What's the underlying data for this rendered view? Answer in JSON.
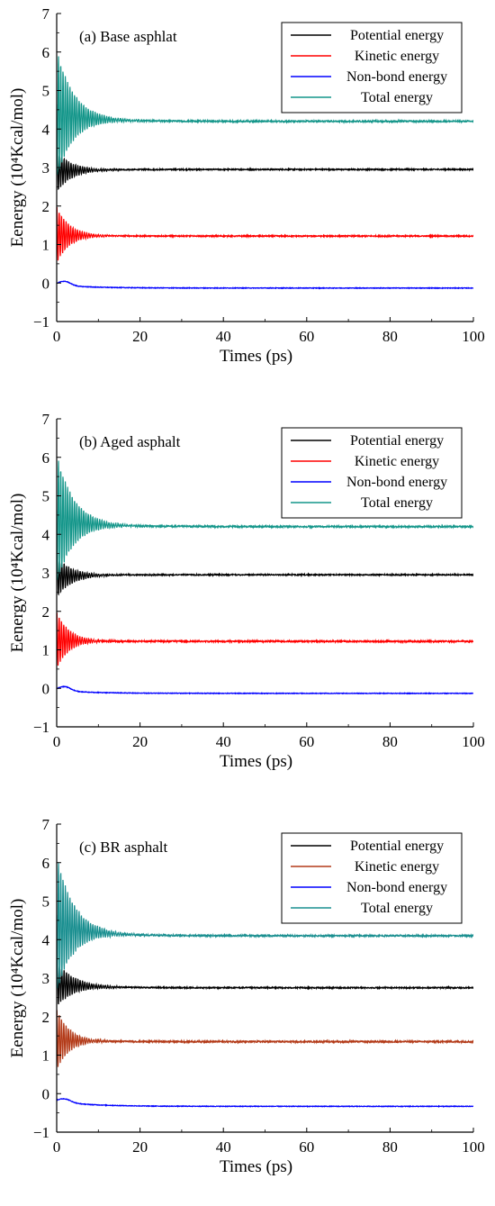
{
  "chart_data": [
    {
      "type": "line",
      "panel_label": "(a) Base asphlat",
      "xlabel": "Times (ps)",
      "ylabel": "Eenergy (10⁴Kcal/mol)",
      "xlim": [
        0,
        100
      ],
      "ylim": [
        -1,
        7
      ],
      "xticks": [
        0,
        20,
        40,
        60,
        80,
        100
      ],
      "yticks": [
        -1,
        0,
        1,
        2,
        3,
        4,
        5,
        6,
        7
      ],
      "legend_position": "top-right",
      "series": [
        {
          "name": "Potential energy",
          "color": "#000000",
          "start": 2.9,
          "final": 2.95,
          "amp0": 0.55,
          "tau": 3.5,
          "noise": 0.015,
          "x": [
            0,
            5,
            10,
            20,
            40,
            60,
            80,
            100
          ],
          "y": [
            2.9,
            3.1,
            3.0,
            2.97,
            2.96,
            2.95,
            2.95,
            2.95
          ]
        },
        {
          "name": "Kinetic energy",
          "color": "#ff0000",
          "start": 1.25,
          "final": 1.22,
          "amp0": 0.75,
          "tau": 3.0,
          "noise": 0.015,
          "x": [
            0,
            5,
            10,
            20,
            40,
            60,
            80,
            100
          ],
          "y": [
            1.25,
            1.3,
            1.24,
            1.22,
            1.22,
            1.22,
            1.22,
            1.22
          ]
        },
        {
          "name": "Non-bond energy",
          "color": "#0000ff",
          "start": -0.05,
          "final": -0.13,
          "amp0": 0.0,
          "tau": 3.0,
          "noise": 0.008,
          "bump": 0.12,
          "x": [
            0,
            2,
            5,
            10,
            20,
            40,
            60,
            80,
            100
          ],
          "y": [
            -0.05,
            0.08,
            0.05,
            -0.02,
            -0.08,
            -0.1,
            -0.11,
            -0.12,
            -0.13
          ]
        },
        {
          "name": "Total energy",
          "color": "#14968a",
          "start": 4.4,
          "final": 4.2,
          "amp0": 1.7,
          "tau": 4.0,
          "noise": 0.02,
          "x": [
            0,
            5,
            10,
            20,
            40,
            60,
            80,
            100
          ],
          "y": [
            4.4,
            4.3,
            4.25,
            4.22,
            4.21,
            4.2,
            4.2,
            4.2
          ]
        }
      ]
    },
    {
      "type": "line",
      "panel_label": "(b) Aged asphalt",
      "xlabel": "Times (ps)",
      "ylabel": "Eenergy (10⁴Kcal/mol)",
      "xlim": [
        0,
        100
      ],
      "ylim": [
        -1,
        7
      ],
      "xticks": [
        0,
        20,
        40,
        60,
        80,
        100
      ],
      "yticks": [
        -1,
        0,
        1,
        2,
        3,
        4,
        5,
        6,
        7
      ],
      "legend_position": "top-right",
      "series": [
        {
          "name": "Potential energy",
          "color": "#000000",
          "start": 2.9,
          "final": 2.95,
          "amp0": 0.55,
          "tau": 3.5,
          "noise": 0.015,
          "x": [
            0,
            5,
            10,
            20,
            40,
            60,
            80,
            100
          ],
          "y": [
            2.9,
            3.1,
            3.0,
            2.97,
            2.96,
            2.95,
            2.95,
            2.95
          ]
        },
        {
          "name": "Kinetic energy",
          "color": "#ff0000",
          "start": 1.25,
          "final": 1.22,
          "amp0": 0.75,
          "tau": 3.0,
          "noise": 0.02,
          "x": [
            0,
            5,
            10,
            20,
            40,
            60,
            80,
            100
          ],
          "y": [
            1.25,
            1.3,
            1.24,
            1.22,
            1.22,
            1.22,
            1.22,
            1.22
          ]
        },
        {
          "name": "Non-bond energy",
          "color": "#0000ff",
          "start": -0.05,
          "final": -0.13,
          "amp0": 0.0,
          "tau": 3.0,
          "noise": 0.008,
          "bump": 0.12,
          "x": [
            0,
            2,
            5,
            10,
            20,
            40,
            60,
            80,
            100
          ],
          "y": [
            -0.05,
            0.08,
            0.05,
            -0.02,
            -0.08,
            -0.1,
            -0.11,
            -0.12,
            -0.13
          ]
        },
        {
          "name": "Total energy",
          "color": "#14968a",
          "start": 4.4,
          "final": 4.2,
          "amp0": 1.7,
          "tau": 4.0,
          "noise": 0.02,
          "x": [
            0,
            5,
            10,
            20,
            40,
            60,
            80,
            100
          ],
          "y": [
            4.4,
            4.3,
            4.25,
            4.22,
            4.21,
            4.2,
            4.2,
            4.2
          ]
        }
      ]
    },
    {
      "type": "line",
      "panel_label": "(c) BR asphalt",
      "xlabel": "Times (ps)",
      "ylabel": "Eenergy (10⁴Kcal/mol)",
      "xlim": [
        0,
        100
      ],
      "ylim": [
        -1,
        7
      ],
      "xticks": [
        0,
        20,
        40,
        60,
        80,
        100
      ],
      "yticks": [
        -1,
        0,
        1,
        2,
        3,
        4,
        5,
        6,
        7
      ],
      "legend_position": "top-right",
      "series": [
        {
          "name": "Potential energy",
          "color": "#000000",
          "start": 2.85,
          "final": 2.75,
          "amp0": 0.6,
          "tau": 4.0,
          "noise": 0.015,
          "x": [
            0,
            5,
            10,
            20,
            40,
            60,
            80,
            100
          ],
          "y": [
            2.85,
            2.95,
            2.85,
            2.8,
            2.78,
            2.76,
            2.75,
            2.75
          ]
        },
        {
          "name": "Kinetic energy",
          "color": "#b33a18",
          "start": 1.4,
          "final": 1.35,
          "amp0": 0.8,
          "tau": 3.0,
          "noise": 0.02,
          "x": [
            0,
            5,
            10,
            20,
            40,
            60,
            80,
            100
          ],
          "y": [
            1.4,
            1.4,
            1.36,
            1.35,
            1.35,
            1.35,
            1.35,
            1.35
          ]
        },
        {
          "name": "Non-bond energy",
          "color": "#0000ff",
          "start": -0.2,
          "final": -0.33,
          "amp0": 0.0,
          "tau": 3.0,
          "noise": 0.008,
          "bump": 0.1,
          "x": [
            0,
            2,
            5,
            10,
            20,
            40,
            60,
            80,
            100
          ],
          "y": [
            -0.2,
            -0.1,
            -0.15,
            -0.22,
            -0.27,
            -0.3,
            -0.32,
            -0.33,
            -0.33
          ]
        },
        {
          "name": "Total energy",
          "color": "#1a8f90",
          "start": 4.4,
          "final": 4.1,
          "amp0": 1.8,
          "tau": 4.0,
          "noise": 0.02,
          "x": [
            0,
            5,
            10,
            20,
            40,
            60,
            80,
            100
          ],
          "y": [
            4.4,
            4.25,
            4.18,
            4.15,
            4.13,
            4.11,
            4.1,
            4.1
          ]
        }
      ]
    }
  ]
}
